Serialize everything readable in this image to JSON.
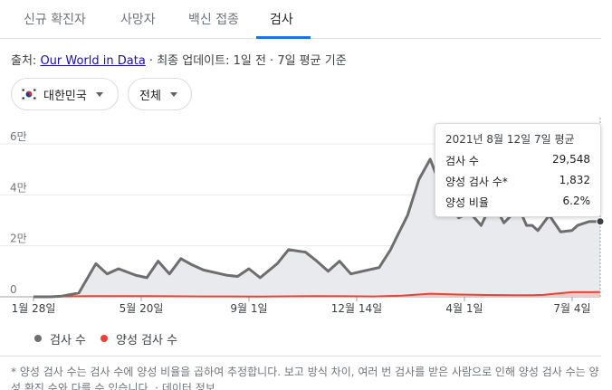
{
  "tabs": [
    {
      "label": "신규 확진자"
    },
    {
      "label": "사망자"
    },
    {
      "label": "백신 접종"
    },
    {
      "label": "검사"
    }
  ],
  "source": {
    "prefix": "출처: ",
    "link": "Our World in Data",
    "suffix": " · 최종 업데이트: 1일 전 · 7일 평균 기준"
  },
  "filters": {
    "country": "대한민국",
    "region": "전체"
  },
  "tooltip": {
    "title": "2021년 8월 12일 7일 평균",
    "rows": [
      {
        "label": "검사 수",
        "value": "29,548"
      },
      {
        "label": "양성 검사 수*",
        "value": "1,832"
      },
      {
        "label": "양성 비율",
        "value": "6.2%"
      }
    ]
  },
  "legend": {
    "tests": "검사 수",
    "positive": "양성 검사 수"
  },
  "footnote": {
    "text": "* 양성 검사 수는 검사 수에 양성 비율을 곱하여 추정합니다. 보고 방식 차이, 여러 번 검사를 받은 사람으로 인해 양성 검사 수는 양성 확진 수와 다를 수 있습니다. · ",
    "link": "데이터 정보"
  },
  "colors": {
    "tests": "#6e6e6e",
    "tests_fill": "#e8eaed",
    "positive": "#ea4335",
    "accent": "#1a73e8"
  },
  "chart_data": {
    "type": "area",
    "ylim": [
      0,
      60000
    ],
    "ytick_labels": [
      "0",
      "2만",
      "4만",
      "6만"
    ],
    "xtick_labels": [
      "1월 28일",
      "5월 20일",
      "9월 1일",
      "12월 14일",
      "4월 1일",
      "7월 4일"
    ],
    "series": [
      {
        "name": "검사 수",
        "color": "#6e6e6e",
        "x": [
          0,
          3,
          5,
          8,
          11,
          13,
          15,
          18,
          20,
          22,
          24,
          26,
          28,
          30,
          32,
          34,
          36,
          38,
          40,
          43,
          45,
          48,
          50,
          52,
          54,
          56,
          58,
          61,
          63,
          64,
          66,
          68,
          70,
          72,
          73,
          75,
          77,
          79,
          81,
          83,
          85,
          86,
          87,
          88,
          89,
          91,
          93,
          95,
          96,
          98,
          100
        ],
        "values": [
          0,
          0,
          300,
          1500,
          13000,
          9000,
          11000,
          8500,
          7500,
          14000,
          9000,
          15000,
          12500,
          10500,
          9500,
          8500,
          8000,
          11000,
          7500,
          13000,
          18500,
          17500,
          14000,
          10000,
          14000,
          9000,
          10000,
          11500,
          18500,
          23000,
          32000,
          46000,
          54000,
          42500,
          39000,
          31000,
          33000,
          28000,
          37500,
          29000,
          33500,
          33000,
          28000,
          28000,
          26000,
          32000,
          25500,
          26000,
          28000,
          29500,
          29548
        ]
      },
      {
        "name": "양성 검사 수",
        "color": "#ea4335",
        "x": [
          0,
          10,
          20,
          30,
          40,
          50,
          55,
          60,
          65,
          70,
          75,
          80,
          85,
          88,
          90,
          92,
          95,
          98,
          100
        ],
        "values": [
          0,
          300,
          300,
          150,
          120,
          300,
          200,
          150,
          450,
          1200,
          900,
          700,
          600,
          650,
          750,
          1200,
          1800,
          1800,
          1832
        ]
      }
    ]
  }
}
